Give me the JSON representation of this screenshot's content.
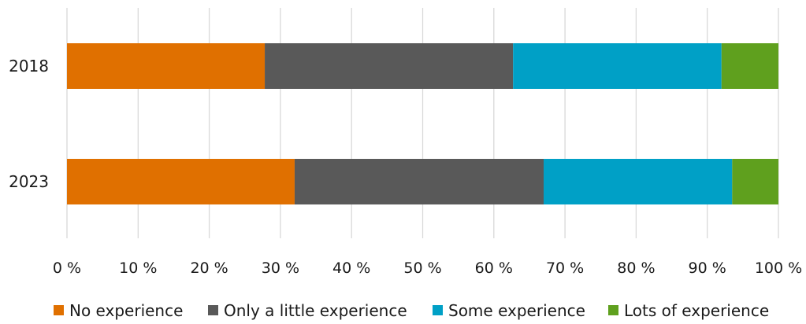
{
  "chart_data": {
    "type": "bar",
    "orientation": "horizontal",
    "stacked": true,
    "percent": true,
    "categories": [
      "2018",
      "2023"
    ],
    "series": [
      {
        "name": "No experience",
        "color": "#E07000",
        "values": [
          27.8,
          32.0
        ]
      },
      {
        "name": "Only a little experience",
        "color": "#595959",
        "values": [
          34.9,
          35.0
        ]
      },
      {
        "name": "Some experience",
        "color": "#00A0C6",
        "values": [
          29.3,
          26.5
        ]
      },
      {
        "name": "Lots of experience",
        "color": "#5FA01E",
        "values": [
          8.0,
          6.5
        ]
      }
    ],
    "xlim": [
      0,
      100
    ],
    "xticks": [
      0,
      10,
      20,
      30,
      40,
      50,
      60,
      70,
      80,
      90,
      100
    ],
    "xtick_labels": [
      "0 %",
      "10 %",
      "20 %",
      "30 %",
      "40 %",
      "50 %",
      "60 %",
      "70 %",
      "80 %",
      "90 %",
      "100 %"
    ],
    "grid": true,
    "legend_position": "bottom"
  }
}
